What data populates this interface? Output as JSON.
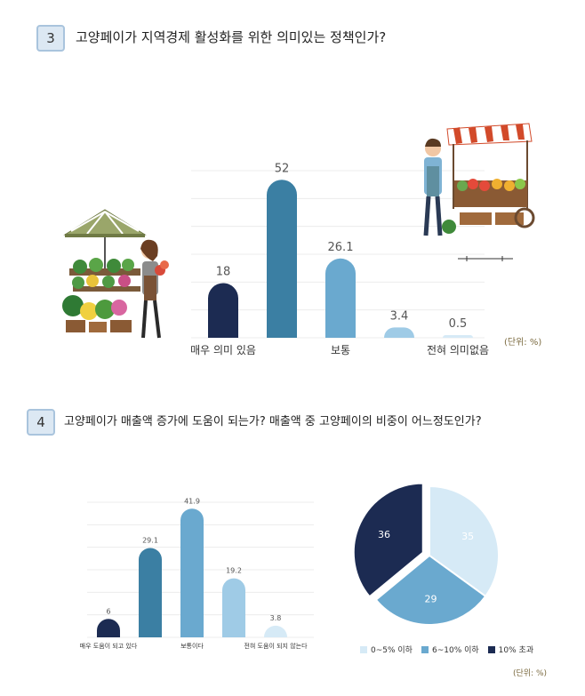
{
  "q3": {
    "number": "3",
    "question": "고양페이가 지역경제 활성화를 위한 의미있는 정책인가?",
    "unit": "(단위: %)"
  },
  "q4": {
    "number": "4",
    "question": "고양페이가 매출액 증가에 도움이 되는가? 매출액 중 고양페이의 비중이 어느정도인가?",
    "unit": "(단위: %)"
  },
  "chart_data": [
    {
      "type": "bar",
      "values": [
        18,
        52,
        26.1,
        3.4,
        0.5
      ],
      "labels": [
        "18",
        "52",
        "26.1",
        "3.4",
        "0.5"
      ],
      "axis_labels": [
        "매우 의미 있음",
        "",
        "보통",
        "",
        "전혀 의미없음"
      ],
      "colors": [
        "#1c2b52",
        "#3b7fa3",
        "#6aa9cf",
        "#9fcbe6",
        "#d6eaf6"
      ],
      "ylim": [
        0,
        55
      ]
    },
    {
      "type": "bar",
      "values": [
        6,
        29.1,
        41.9,
        19.2,
        3.8
      ],
      "labels": [
        "6",
        "29.1",
        "41.9",
        "19.2",
        "3.8"
      ],
      "axis_labels": [
        "매우 도움이 되고 있다",
        "",
        "보통이다",
        "",
        "전혀 도움이 되지 않는다"
      ],
      "colors": [
        "#1c2b52",
        "#3b7fa3",
        "#6aa9cf",
        "#9fcbe6",
        "#d6eaf6"
      ],
      "ylim": [
        0,
        44
      ]
    },
    {
      "type": "pie",
      "slices": [
        {
          "label": "0~5% 이하",
          "value": 35,
          "color": "#d6eaf6"
        },
        {
          "label": "6~10% 이하",
          "value": 29,
          "color": "#6aa9cf"
        },
        {
          "label": "10% 초과",
          "value": 36,
          "color": "#1c2b52"
        }
      ]
    }
  ]
}
